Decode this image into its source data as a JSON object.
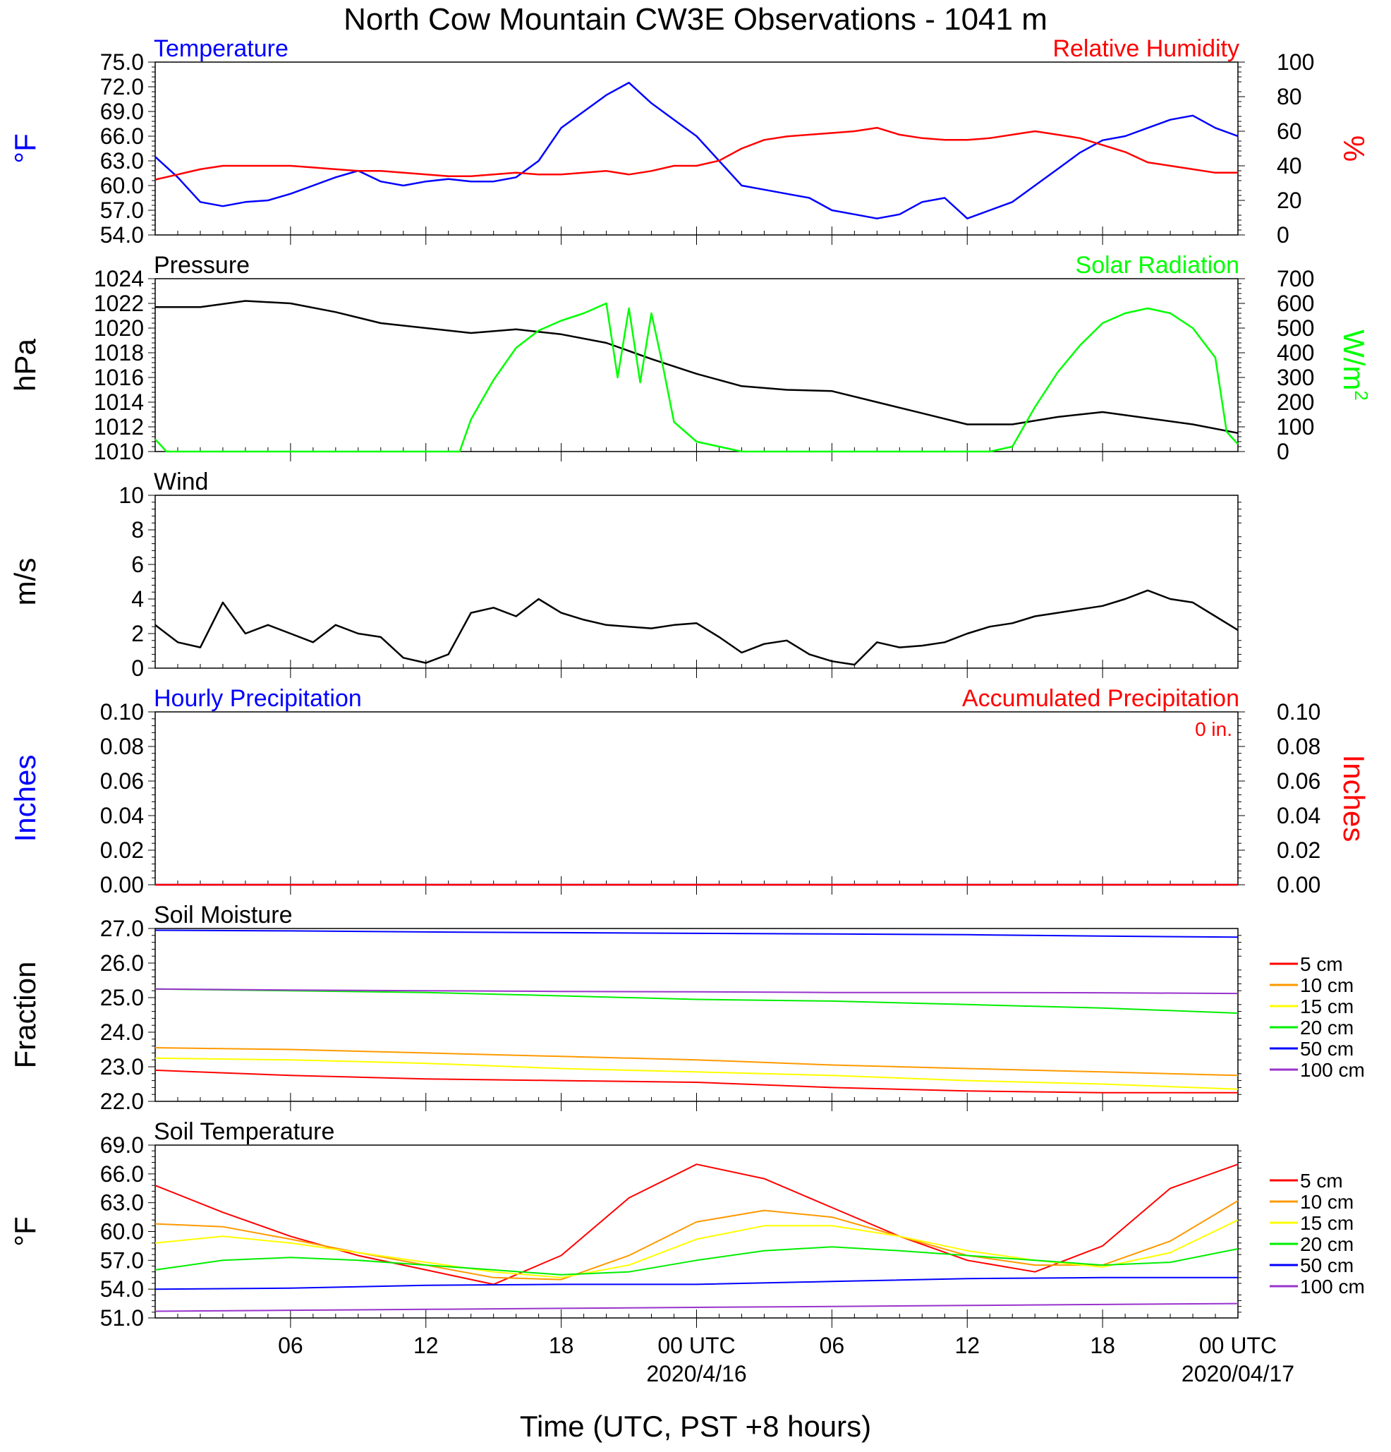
{
  "title": "North Cow Mountain CW3E Observations - 1041 m",
  "x_axis": {
    "label": "Time (UTC, PST +8 hours)",
    "ticks": [
      {
        "hour": 6,
        "label": "06"
      },
      {
        "hour": 12,
        "label": "12"
      },
      {
        "hour": 18,
        "label": "18"
      },
      {
        "hour": 24,
        "label": "00 UTC",
        "sublabel": "2020/4/16"
      },
      {
        "hour": 30,
        "label": "06"
      },
      {
        "hour": 36,
        "label": "12"
      },
      {
        "hour": 42,
        "label": "18"
      },
      {
        "hour": 48,
        "label": "00 UTC",
        "sublabel": "2020/04/17"
      }
    ]
  },
  "chart_data": [
    {
      "id": "temp-rh",
      "type": "line",
      "title_left": "Temperature",
      "title_right": "Relative Humidity",
      "ylabel_left": "°F",
      "ylabel_right": "%",
      "ylim_left": [
        54,
        75
      ],
      "ylim_right": [
        0,
        100
      ],
      "yticks_left": [
        "54.0",
        "57.0",
        "60.0",
        "63.0",
        "66.0",
        "69.0",
        "72.0",
        "75.0"
      ],
      "yticks_right": [
        "0",
        "20",
        "40",
        "60",
        "80",
        "100"
      ],
      "series": [
        {
          "name": "Temperature",
          "axis": "left",
          "color": "#0000ff",
          "x": [
            0,
            1,
            2,
            3,
            4,
            5,
            6,
            7,
            8,
            9,
            10,
            11,
            12,
            13,
            14,
            15,
            16,
            17,
            18,
            19,
            20,
            21,
            22,
            23,
            24,
            25,
            26,
            27,
            28,
            29,
            30,
            31,
            32,
            33,
            34,
            35,
            36,
            37,
            38,
            39,
            40,
            41,
            42,
            43,
            44,
            45,
            46,
            47,
            48
          ],
          "y": [
            63.5,
            61.0,
            58.0,
            57.5,
            58.0,
            58.2,
            59.0,
            60.0,
            61.0,
            61.8,
            60.5,
            60.0,
            60.5,
            60.8,
            60.5,
            60.5,
            61.0,
            63.0,
            67.0,
            69.0,
            71.0,
            72.5,
            70.0,
            68.0,
            66.0,
            63.0,
            60.0,
            59.5,
            59.0,
            58.5,
            57.0,
            56.5,
            56.0,
            56.5,
            58.0,
            58.5,
            56.0,
            57.0,
            58.0,
            60.0,
            62.0,
            64.0,
            65.5,
            66.0,
            67.0,
            68.0,
            68.5,
            67.0,
            66.0
          ]
        },
        {
          "name": "Relative Humidity",
          "axis": "right",
          "color": "#ff0000",
          "x": [
            0,
            1,
            2,
            3,
            4,
            5,
            6,
            7,
            8,
            9,
            10,
            11,
            12,
            13,
            14,
            15,
            16,
            17,
            18,
            19,
            20,
            21,
            22,
            23,
            24,
            25,
            26,
            27,
            28,
            29,
            30,
            31,
            32,
            33,
            34,
            35,
            36,
            37,
            38,
            39,
            40,
            41,
            42,
            43,
            44,
            45,
            46,
            47,
            48
          ],
          "y": [
            32,
            35,
            38,
            40,
            40,
            40,
            40,
            39,
            38,
            37,
            37,
            36,
            35,
            34,
            34,
            35,
            36,
            35,
            35,
            36,
            37,
            35,
            37,
            40,
            40,
            43,
            50,
            55,
            57,
            58,
            59,
            60,
            62,
            58,
            56,
            55,
            55,
            56,
            58,
            60,
            58,
            56,
            52,
            48,
            42,
            40,
            38,
            36,
            36
          ]
        }
      ]
    },
    {
      "id": "pressure-solar",
      "type": "line",
      "title_left": "Pressure",
      "title_right": "Solar Radiation",
      "ylabel_left": "hPa",
      "ylabel_right": "W/m",
      "ylabel_right_sup": "2",
      "ylim_left": [
        1010,
        1024
      ],
      "ylim_right": [
        0,
        700
      ],
      "yticks_left": [
        "1010",
        "1012",
        "1014",
        "1016",
        "1018",
        "1020",
        "1022",
        "1024"
      ],
      "yticks_right": [
        "0",
        "100",
        "200",
        "300",
        "400",
        "500",
        "600",
        "700"
      ],
      "series": [
        {
          "name": "Pressure",
          "axis": "left",
          "color": "#000000",
          "x": [
            0,
            2,
            4,
            6,
            8,
            10,
            12,
            14,
            16,
            18,
            20,
            22,
            24,
            26,
            28,
            30,
            32,
            34,
            36,
            38,
            40,
            42,
            44,
            46,
            48
          ],
          "y": [
            1021.7,
            1021.7,
            1022.2,
            1022.0,
            1021.3,
            1020.4,
            1020.0,
            1019.6,
            1019.9,
            1019.5,
            1018.8,
            1017.5,
            1016.3,
            1015.3,
            1015.0,
            1014.9,
            1014.0,
            1013.1,
            1012.2,
            1012.2,
            1012.8,
            1013.2,
            1012.7,
            1012.2,
            1011.5
          ]
        },
        {
          "name": "Solar Radiation",
          "axis": "right",
          "color": "#00ff00",
          "x": [
            0,
            0.5,
            1,
            1.5,
            13.5,
            14,
            15,
            16,
            17,
            18,
            19,
            20,
            20.5,
            21,
            21.5,
            22,
            22.5,
            23,
            24,
            25,
            26,
            27,
            37,
            38,
            39,
            40,
            41,
            42,
            43,
            44,
            45,
            46,
            47,
            47.5,
            48
          ],
          "y": [
            50,
            0,
            0,
            0,
            0,
            130,
            290,
            420,
            490,
            530,
            560,
            600,
            300,
            580,
            280,
            560,
            350,
            120,
            40,
            20,
            0,
            0,
            0,
            20,
            180,
            320,
            430,
            520,
            560,
            580,
            560,
            500,
            380,
            80,
            30
          ]
        }
      ]
    },
    {
      "id": "wind",
      "type": "line",
      "title_left": "Wind",
      "ylabel_left": "m/s",
      "ylim_left": [
        0,
        10
      ],
      "yticks_left": [
        "0",
        "2",
        "4",
        "6",
        "8",
        "10"
      ],
      "series": [
        {
          "name": "Wind",
          "axis": "left",
          "color": "#000000",
          "x": [
            0,
            1,
            2,
            3,
            4,
            5,
            6,
            7,
            8,
            9,
            10,
            11,
            12,
            13,
            14,
            15,
            16,
            17,
            18,
            19,
            20,
            21,
            22,
            23,
            24,
            25,
            26,
            27,
            28,
            29,
            30,
            31,
            32,
            33,
            34,
            35,
            36,
            37,
            38,
            39,
            40,
            41,
            42,
            43,
            44,
            45,
            46,
            47,
            48
          ],
          "y": [
            2.5,
            1.5,
            1.2,
            3.8,
            2.0,
            2.5,
            2.0,
            1.5,
            2.5,
            2.0,
            1.8,
            0.6,
            0.3,
            0.8,
            3.2,
            3.5,
            3.0,
            4.0,
            3.2,
            2.8,
            2.5,
            2.4,
            2.3,
            2.5,
            2.6,
            1.8,
            0.9,
            1.4,
            1.6,
            0.8,
            0.4,
            0.2,
            1.5,
            1.2,
            1.3,
            1.5,
            2.0,
            2.4,
            2.6,
            3.0,
            3.2,
            3.4,
            3.6,
            4.0,
            4.5,
            4.0,
            3.8,
            3.0,
            2.2
          ]
        }
      ]
    },
    {
      "id": "precip",
      "type": "line",
      "title_left": "Hourly Precipitation",
      "title_right": "Accumulated Precipitation",
      "annotation": "0 in.",
      "ylabel_left": "Inches",
      "ylabel_right": "Inches",
      "ylim_left": [
        0,
        0.1
      ],
      "ylim_right": [
        0,
        0.1
      ],
      "yticks_left": [
        "0.00",
        "0.02",
        "0.04",
        "0.06",
        "0.08",
        "0.10"
      ],
      "yticks_right": [
        "0.00",
        "0.02",
        "0.04",
        "0.06",
        "0.08",
        "0.10"
      ],
      "series": [
        {
          "name": "Hourly Precipitation",
          "axis": "left",
          "color": "#0000ff",
          "x": [
            0,
            48
          ],
          "y": [
            0,
            0
          ]
        },
        {
          "name": "Accumulated Precipitation",
          "axis": "right",
          "color": "#ff0000",
          "x": [
            0,
            48
          ],
          "y": [
            0,
            0
          ]
        }
      ]
    },
    {
      "id": "soil-moisture",
      "type": "line",
      "title_left": "Soil Moisture",
      "ylabel_left": "Fraction",
      "ylim_left": [
        22,
        27
      ],
      "yticks_left": [
        "22.0",
        "23.0",
        "24.0",
        "25.0",
        "26.0",
        "27.0"
      ],
      "series": [
        {
          "name": "5 cm",
          "axis": "left",
          "color": "#ff0000",
          "x": [
            0,
            6,
            12,
            18,
            24,
            30,
            36,
            42,
            48
          ],
          "y": [
            22.9,
            22.75,
            22.65,
            22.6,
            22.55,
            22.4,
            22.3,
            22.25,
            22.25
          ]
        },
        {
          "name": "10 cm",
          "axis": "left",
          "color": "#ff9900",
          "x": [
            0,
            6,
            12,
            18,
            24,
            30,
            36,
            42,
            48
          ],
          "y": [
            23.55,
            23.5,
            23.4,
            23.3,
            23.2,
            23.05,
            22.95,
            22.85,
            22.75
          ]
        },
        {
          "name": "15 cm",
          "axis": "left",
          "color": "#ffff00",
          "x": [
            0,
            6,
            12,
            18,
            24,
            30,
            36,
            42,
            48
          ],
          "y": [
            23.25,
            23.2,
            23.1,
            22.95,
            22.85,
            22.75,
            22.6,
            22.5,
            22.35
          ]
        },
        {
          "name": "20 cm",
          "axis": "left",
          "color": "#00ee00",
          "x": [
            0,
            6,
            12,
            18,
            24,
            30,
            36,
            42,
            48
          ],
          "y": [
            25.25,
            25.2,
            25.15,
            25.05,
            24.95,
            24.9,
            24.8,
            24.7,
            24.55
          ]
        },
        {
          "name": "50 cm",
          "axis": "left",
          "color": "#0000ff",
          "x": [
            0,
            6,
            12,
            18,
            24,
            30,
            36,
            42,
            48
          ],
          "y": [
            26.95,
            26.93,
            26.9,
            26.88,
            26.86,
            26.84,
            26.82,
            26.78,
            26.75
          ]
        },
        {
          "name": "100 cm",
          "axis": "left",
          "color": "#9933cc",
          "x": [
            0,
            6,
            12,
            18,
            24,
            30,
            36,
            42,
            48
          ],
          "y": [
            25.25,
            25.22,
            25.2,
            25.18,
            25.17,
            25.15,
            25.15,
            25.14,
            25.12
          ]
        }
      ]
    },
    {
      "id": "soil-temperature",
      "type": "line",
      "title_left": "Soil Temperature",
      "ylabel_left": "°F",
      "ylim_left": [
        51,
        69
      ],
      "yticks_left": [
        "51.0",
        "54.0",
        "57.0",
        "60.0",
        "63.0",
        "66.0",
        "69.0"
      ],
      "series": [
        {
          "name": "5 cm",
          "axis": "left",
          "color": "#ff0000",
          "x": [
            0,
            3,
            6,
            9,
            12,
            15,
            18,
            21,
            24,
            27,
            30,
            33,
            36,
            39,
            42,
            45,
            48
          ],
          "y": [
            64.8,
            62.0,
            59.5,
            57.5,
            56.0,
            54.5,
            57.5,
            63.5,
            67.0,
            65.5,
            62.5,
            59.5,
            57.0,
            55.8,
            58.5,
            64.5,
            67.0
          ]
        },
        {
          "name": "10 cm",
          "axis": "left",
          "color": "#ff9900",
          "x": [
            0,
            3,
            6,
            9,
            12,
            15,
            18,
            21,
            24,
            27,
            30,
            33,
            36,
            39,
            42,
            45,
            48
          ],
          "y": [
            60.8,
            60.5,
            59.2,
            57.8,
            56.5,
            55.2,
            55.0,
            57.5,
            61.0,
            62.2,
            61.5,
            59.5,
            57.5,
            56.5,
            56.5,
            59.0,
            63.2
          ]
        },
        {
          "name": "15 cm",
          "axis": "left",
          "color": "#ffff00",
          "x": [
            0,
            3,
            6,
            9,
            12,
            15,
            18,
            21,
            24,
            27,
            30,
            33,
            36,
            39,
            42,
            45,
            48
          ],
          "y": [
            58.8,
            59.5,
            58.8,
            57.8,
            56.8,
            55.8,
            55.2,
            56.5,
            59.2,
            60.6,
            60.6,
            59.5,
            58.0,
            57.0,
            56.3,
            57.8,
            61.2
          ]
        },
        {
          "name": "20 cm",
          "axis": "left",
          "color": "#00ee00",
          "x": [
            0,
            3,
            6,
            9,
            12,
            15,
            18,
            21,
            24,
            27,
            30,
            33,
            36,
            39,
            42,
            45,
            48
          ],
          "y": [
            56.0,
            57.0,
            57.3,
            57.0,
            56.5,
            56.0,
            55.5,
            55.8,
            57.0,
            58.0,
            58.4,
            58.0,
            57.5,
            57.0,
            56.5,
            56.8,
            58.2
          ]
        },
        {
          "name": "50 cm",
          "axis": "left",
          "color": "#0000ff",
          "x": [
            0,
            6,
            12,
            18,
            24,
            30,
            36,
            42,
            48
          ],
          "y": [
            54.0,
            54.1,
            54.4,
            54.5,
            54.5,
            54.8,
            55.1,
            55.2,
            55.2
          ]
        },
        {
          "name": "100 cm",
          "axis": "left",
          "color": "#9933cc",
          "x": [
            0,
            6,
            12,
            18,
            24,
            30,
            36,
            42,
            48
          ],
          "y": [
            51.7,
            51.8,
            51.9,
            52.0,
            52.1,
            52.2,
            52.3,
            52.4,
            52.5
          ]
        }
      ]
    }
  ]
}
